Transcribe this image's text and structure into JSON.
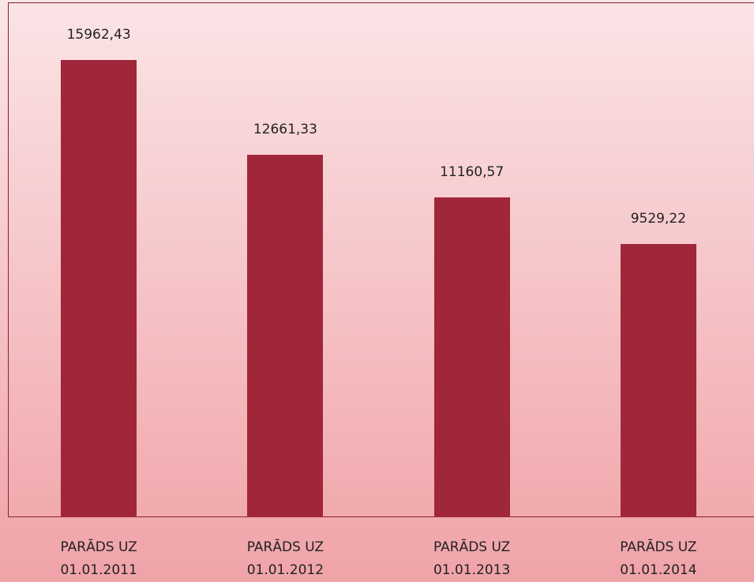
{
  "chart_data": {
    "type": "bar",
    "categories": [
      "PARĀDS UZ 01.01.2011",
      "PARĀDS UZ 01.01.2012",
      "PARĀDS UZ 01.01.2013",
      "PARĀDS UZ 01.01.2014"
    ],
    "values": [
      15962.43,
      12661.33,
      11160.57,
      9529.22
    ],
    "value_labels": [
      "15962,43",
      "12661,33",
      "11160,57",
      "9529,22"
    ],
    "color": "#a0263a"
  }
}
